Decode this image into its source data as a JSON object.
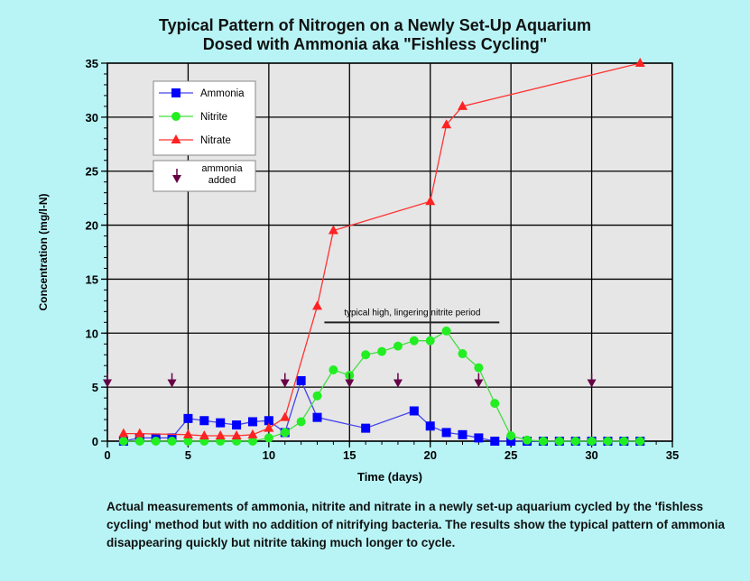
{
  "chart_data": {
    "type": "line",
    "title_line1": "Typical Pattern of Nitrogen on a Newly Set-Up Aquarium",
    "title_line2": "Dosed with Ammonia aka \"Fishless Cycling\"",
    "xlabel": "Time (days)",
    "ylabel": "Concentration (mg/l-N)",
    "xlim": [
      0,
      35
    ],
    "ylim": [
      0,
      35
    ],
    "xticks": [
      0,
      5,
      10,
      15,
      20,
      25,
      30,
      35
    ],
    "yticks": [
      0,
      5,
      10,
      15,
      20,
      25,
      30,
      35
    ],
    "grid": true,
    "legend_position": "top-left",
    "series": [
      {
        "name": "Ammonia",
        "color": "#0000ff",
        "marker": "square",
        "x": [
          1,
          2,
          3,
          4,
          5,
          6,
          7,
          8,
          9,
          10,
          11,
          12,
          13,
          16,
          19,
          20,
          21,
          22,
          23,
          24,
          25,
          26,
          27,
          28,
          29,
          30,
          31,
          32,
          33
        ],
        "y": [
          0,
          0.3,
          0.3,
          0.3,
          2.1,
          1.9,
          1.7,
          1.5,
          1.8,
          1.9,
          0.8,
          5.6,
          2.2,
          1.2,
          2.8,
          1.4,
          0.8,
          0.6,
          0.3,
          0,
          0,
          0,
          0,
          0,
          0,
          0,
          0,
          0,
          0
        ]
      },
      {
        "name": "Nitrite",
        "color": "#22ee22",
        "marker": "circle",
        "x": [
          1,
          2,
          3,
          4,
          5,
          6,
          7,
          8,
          9,
          10,
          11,
          12,
          13,
          14,
          15,
          16,
          17,
          18,
          19,
          20,
          21,
          22,
          23,
          24,
          25,
          26,
          27,
          28,
          29,
          30,
          31,
          32,
          33
        ],
        "y": [
          0,
          0,
          0,
          0,
          0,
          0,
          0,
          0,
          0,
          0.3,
          0.8,
          1.8,
          4.2,
          6.6,
          6.1,
          8.0,
          8.3,
          8.8,
          9.3,
          9.3,
          10.2,
          8.1,
          6.8,
          3.5,
          0.5,
          0.1,
          0,
          0,
          0,
          0,
          0,
          0,
          0
        ]
      },
      {
        "name": "Nitrate",
        "color": "#ff2222",
        "marker": "triangle",
        "x": [
          1,
          2,
          5,
          6,
          7,
          8,
          9,
          10,
          11,
          13,
          14,
          20,
          21,
          22,
          33
        ],
        "y": [
          0.7,
          0.7,
          0.6,
          0.5,
          0.5,
          0.5,
          0.6,
          1.2,
          2.2,
          12.5,
          19.5,
          22.2,
          29.3,
          31,
          35
        ]
      }
    ],
    "ammonia_added": {
      "label_line1": "ammonia",
      "label_line2": "added",
      "color": "#660044",
      "days": [
        0,
        4,
        11,
        15,
        18,
        23,
        30
      ],
      "level": 5.3
    },
    "annotation": {
      "text": "typical high, lingering nitrite period",
      "from": 14,
      "to": 24,
      "level": 11
    }
  },
  "caption": "Actual measurements of ammonia, nitrite and nitrate in a newly set-up aquarium cycled by the 'fishless cycling' method but with no addition of nitrifying bacteria. The results show the typical pattern of ammonia disappearing quickly but nitrite taking much longer to cycle."
}
